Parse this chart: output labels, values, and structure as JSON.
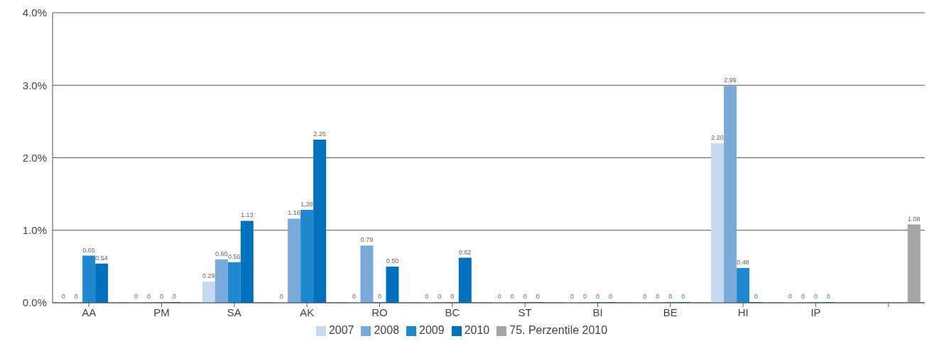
{
  "chart_data": {
    "type": "bar",
    "categories": [
      "AA",
      "PM",
      "SA",
      "AK",
      "RO",
      "BC",
      "ST",
      "BI",
      "BE",
      "HI",
      "IP",
      null
    ],
    "series": [
      {
        "name": "2007",
        "color": "#c6d9f1",
        "values": [
          0,
          0,
          0.29,
          0,
          0,
          0,
          0,
          0,
          0,
          2.2,
          0,
          null
        ],
        "value_labels": [
          "0",
          "0",
          "0.29",
          "0",
          "0",
          "0",
          "0",
          "0",
          "0",
          "2.20",
          "0",
          null
        ]
      },
      {
        "name": "2008",
        "color": "#7aaadc",
        "values": [
          0,
          0,
          0.6,
          1.16,
          0.79,
          0,
          0,
          0,
          0,
          2.99,
          0,
          null
        ],
        "value_labels": [
          "0",
          "0",
          "0.60",
          "1.16",
          "0.79",
          "0",
          "0",
          "0",
          "0",
          "2.99",
          "0",
          null
        ]
      },
      {
        "name": "2009",
        "color": "#1f88cf",
        "values": [
          0.65,
          0,
          0.56,
          1.28,
          0,
          0,
          0,
          0,
          0,
          0.48,
          0,
          null
        ],
        "value_labels": [
          "0.65",
          "0",
          "0.56",
          "1.28",
          "0",
          "0",
          "0",
          "0",
          "0",
          "0.48",
          "0",
          null
        ]
      },
      {
        "name": "2010",
        "color": "#0071bd",
        "values": [
          0.54,
          0,
          1.13,
          2.25,
          0.5,
          0.62,
          0,
          0,
          0,
          0,
          0,
          null
        ],
        "value_labels": [
          "0.54",
          "0",
          "1.13",
          "2.25",
          "0.50",
          "0.62",
          "0",
          "0",
          "0",
          "0",
          "0",
          null
        ]
      },
      {
        "name": "75. Perzentile 2010",
        "color": "#a5a5a5",
        "values": [
          null,
          null,
          null,
          null,
          null,
          null,
          null,
          null,
          null,
          null,
          null,
          1.08
        ],
        "value_labels": [
          null,
          null,
          null,
          null,
          null,
          null,
          null,
          null,
          null,
          null,
          null,
          "1.08"
        ]
      }
    ],
    "ylim": [
      0,
      4
    ],
    "yticks": [
      {
        "value": 0,
        "label": "0.0%"
      },
      {
        "value": 1,
        "label": "1.0%"
      },
      {
        "value": 2,
        "label": "2.0%"
      },
      {
        "value": 3,
        "label": "3.0%"
      },
      {
        "value": 4,
        "label": "4.0%"
      }
    ],
    "grid": "y",
    "legend": "bottom"
  }
}
